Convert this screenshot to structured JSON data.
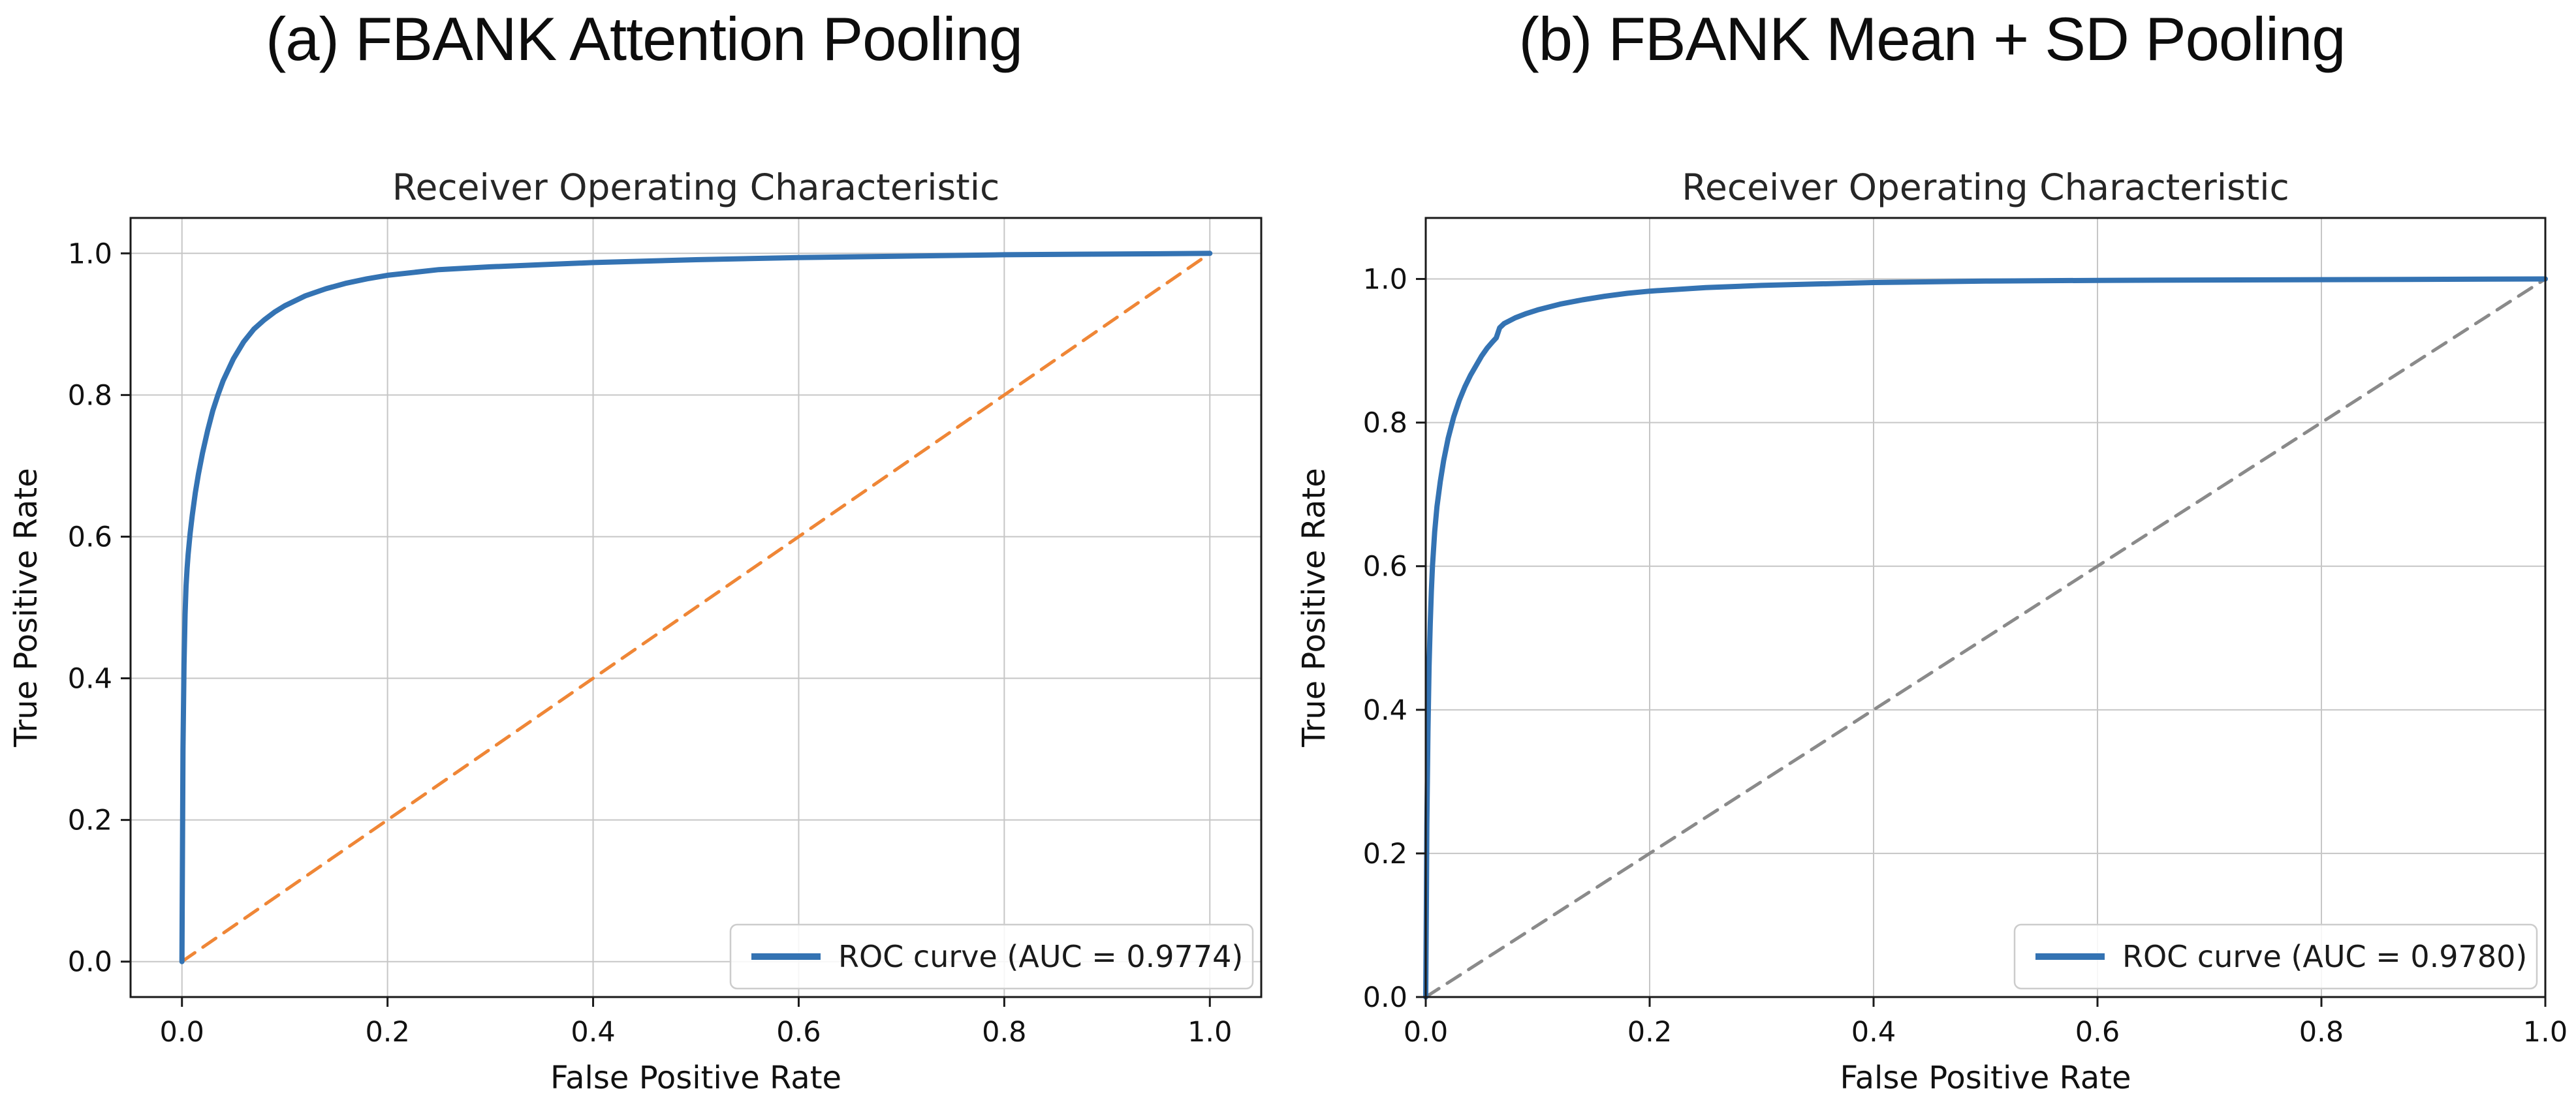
{
  "figure": {
    "background": "#ffffff",
    "description_texts": {
      "shared_chart_title": "Receiver Operating Characteristic",
      "shared_xlabel": "False Positive Rate",
      "shared_ylabel": "True Positive Rate"
    }
  },
  "panels": [
    {
      "label": "(a) FBANK Attention Pooling"
    },
    {
      "label": "(b) FBANK Mean + SD Pooling"
    }
  ],
  "chart_data": [
    {
      "type": "line",
      "title": "Receiver Operating Characteristic",
      "xlabel": "False Positive Rate",
      "ylabel": "True Positive Rate",
      "xlim": [
        -0.05,
        1.05
      ],
      "ylim": [
        -0.05,
        1.05
      ],
      "xticks": [
        "0.0",
        "0.2",
        "0.4",
        "0.6",
        "0.8",
        "1.0"
      ],
      "yticks": [
        "0.0",
        "0.2",
        "0.4",
        "0.6",
        "0.8",
        "1.0"
      ],
      "grid": true,
      "grid_color": "#c6c6c6",
      "spine_color": "#1a1a1a",
      "auc": 0.9774,
      "legend": {
        "position": "lower right",
        "entries": [
          {
            "label": "ROC curve (AUC = 0.9774)",
            "color": "#3473b3",
            "style": "solid"
          }
        ]
      },
      "series": [
        {
          "name": "ROC curve",
          "color": "#3473b3",
          "line_style": "solid",
          "points": [
            [
              0,
              0
            ],
            [
              0.001,
              0.3
            ],
            [
              0.002,
              0.42
            ],
            [
              0.003,
              0.49
            ],
            [
              0.004,
              0.53
            ],
            [
              0.005,
              0.555
            ],
            [
              0.006,
              0.575
            ],
            [
              0.008,
              0.605
            ],
            [
              0.01,
              0.63
            ],
            [
              0.013,
              0.662
            ],
            [
              0.016,
              0.688
            ],
            [
              0.02,
              0.718
            ],
            [
              0.025,
              0.75
            ],
            [
              0.03,
              0.778
            ],
            [
              0.035,
              0.8
            ],
            [
              0.04,
              0.82
            ],
            [
              0.05,
              0.851
            ],
            [
              0.06,
              0.875
            ],
            [
              0.07,
              0.893
            ],
            [
              0.08,
              0.906
            ],
            [
              0.09,
              0.917
            ],
            [
              0.1,
              0.926
            ],
            [
              0.12,
              0.94
            ],
            [
              0.14,
              0.95
            ],
            [
              0.16,
              0.958
            ],
            [
              0.18,
              0.964
            ],
            [
              0.2,
              0.969
            ],
            [
              0.25,
              0.977
            ],
            [
              0.3,
              0.981
            ],
            [
              0.35,
              0.984
            ],
            [
              0.4,
              0.987
            ],
            [
              0.5,
              0.991
            ],
            [
              0.6,
              0.994
            ],
            [
              0.7,
              0.996
            ],
            [
              0.8,
              0.998
            ],
            [
              0.9,
              0.999
            ],
            [
              1,
              1
            ]
          ]
        },
        {
          "name": "chance diagonal",
          "color": "#ef8636",
          "line_style": "dashed",
          "points": [
            [
              0,
              0
            ],
            [
              1,
              1
            ]
          ]
        }
      ]
    },
    {
      "type": "line",
      "title": "Receiver Operating Characteristic",
      "xlabel": "False Positive Rate",
      "ylabel": "True Positive Rate",
      "xlim": [
        0.0,
        1.0
      ],
      "ylim": [
        0.0,
        1.085
      ],
      "xticks": [
        "0.0",
        "0.2",
        "0.4",
        "0.6",
        "0.8",
        "1.0"
      ],
      "yticks": [
        "0.0",
        "0.2",
        "0.4",
        "0.6",
        "0.8",
        "1.0"
      ],
      "grid": true,
      "grid_color": "#c6c6c6",
      "spine_color": "#1a1a1a",
      "auc": 0.978,
      "legend": {
        "position": "lower right",
        "entries": [
          {
            "label": "ROC curve (AUC = 0.9780)",
            "color": "#3473b3",
            "style": "solid"
          }
        ]
      },
      "series": [
        {
          "name": "ROC curve",
          "color": "#3473b3",
          "line_style": "solid",
          "points": [
            [
              0,
              0
            ],
            [
              0.0005,
              0.12
            ],
            [
              0.001,
              0.24
            ],
            [
              0.002,
              0.37
            ],
            [
              0.003,
              0.46
            ],
            [
              0.004,
              0.52
            ],
            [
              0.005,
              0.565
            ],
            [
              0.006,
              0.6
            ],
            [
              0.008,
              0.648
            ],
            [
              0.01,
              0.683
            ],
            [
              0.013,
              0.718
            ],
            [
              0.016,
              0.747
            ],
            [
              0.02,
              0.778
            ],
            [
              0.025,
              0.808
            ],
            [
              0.03,
              0.831
            ],
            [
              0.035,
              0.85
            ],
            [
              0.04,
              0.866
            ],
            [
              0.05,
              0.893
            ],
            [
              0.055,
              0.904
            ],
            [
              0.06,
              0.913
            ],
            [
              0.063,
              0.918
            ],
            [
              0.066,
              0.932
            ],
            [
              0.07,
              0.938
            ],
            [
              0.08,
              0.946
            ],
            [
              0.09,
              0.952
            ],
            [
              0.1,
              0.957
            ],
            [
              0.12,
              0.965
            ],
            [
              0.14,
              0.971
            ],
            [
              0.16,
              0.976
            ],
            [
              0.18,
              0.98
            ],
            [
              0.2,
              0.983
            ],
            [
              0.25,
              0.988
            ],
            [
              0.3,
              0.991
            ],
            [
              0.4,
              0.995
            ],
            [
              0.5,
              0.997
            ],
            [
              0.6,
              0.998
            ],
            [
              0.8,
              0.999
            ],
            [
              1,
              1
            ]
          ]
        },
        {
          "name": "chance diagonal",
          "color": "#8a8a8a",
          "line_style": "dashed",
          "points": [
            [
              0,
              0
            ],
            [
              1,
              1
            ]
          ]
        }
      ]
    }
  ]
}
